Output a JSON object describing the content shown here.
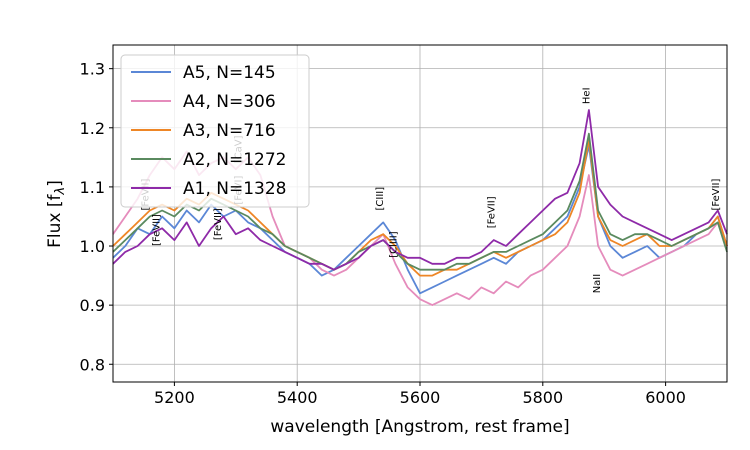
{
  "chart_data": {
    "type": "line",
    "xlabel": "wavelength [Angstrom, rest frame]",
    "ylabel": "Flux [f",
    "ylabel_sub": "λ",
    "ylabel_end": "]",
    "xlim": [
      5100,
      6100
    ],
    "ylim": [
      0.77,
      1.34
    ],
    "xticks": [
      5200,
      5400,
      5600,
      5800,
      6000
    ],
    "yticks": [
      0.8,
      0.9,
      1.0,
      1.1,
      1.2,
      1.3
    ],
    "xtick_labels": [
      "5200",
      "5400",
      "5600",
      "5800",
      "6000"
    ],
    "ytick_labels": [
      "0.8",
      "0.9",
      "1.0",
      "1.1",
      "1.2",
      "1.3"
    ],
    "grid": true,
    "legend_position": "top-left",
    "series": [
      {
        "name": "A5, N=145",
        "color": "#5b87d6",
        "x": [
          5100,
          5120,
          5140,
          5160,
          5180,
          5200,
          5220,
          5240,
          5260,
          5280,
          5300,
          5320,
          5340,
          5360,
          5380,
          5400,
          5420,
          5440,
          5460,
          5480,
          5500,
          5520,
          5540,
          5560,
          5580,
          5600,
          5620,
          5640,
          5660,
          5680,
          5700,
          5720,
          5740,
          5760,
          5780,
          5800,
          5820,
          5840,
          5860,
          5875,
          5890,
          5910,
          5930,
          5950,
          5970,
          5990,
          6010,
          6030,
          6050,
          6070,
          6085,
          6100
        ],
        "y": [
          0.98,
          1.0,
          1.03,
          1.02,
          1.05,
          1.03,
          1.06,
          1.04,
          1.07,
          1.05,
          1.06,
          1.04,
          1.03,
          1.01,
          0.99,
          0.98,
          0.97,
          0.95,
          0.96,
          0.98,
          1.0,
          1.02,
          1.04,
          1.01,
          0.96,
          0.92,
          0.93,
          0.94,
          0.95,
          0.96,
          0.97,
          0.98,
          0.97,
          0.99,
          1.0,
          1.01,
          1.03,
          1.05,
          1.1,
          1.17,
          1.05,
          1.0,
          0.98,
          0.99,
          1.0,
          0.98,
          0.99,
          1.0,
          1.02,
          1.03,
          1.05,
          1.0
        ]
      },
      {
        "name": "A4, N=306",
        "color": "#e58cbc",
        "x": [
          5100,
          5120,
          5140,
          5160,
          5180,
          5200,
          5220,
          5240,
          5260,
          5280,
          5300,
          5320,
          5340,
          5360,
          5380,
          5400,
          5420,
          5440,
          5460,
          5480,
          5500,
          5520,
          5540,
          5560,
          5580,
          5600,
          5620,
          5640,
          5660,
          5680,
          5700,
          5720,
          5740,
          5760,
          5780,
          5800,
          5820,
          5840,
          5860,
          5875,
          5890,
          5910,
          5930,
          5950,
          5970,
          5990,
          6010,
          6030,
          6050,
          6070,
          6085,
          6100
        ],
        "y": [
          1.02,
          1.05,
          1.08,
          1.12,
          1.15,
          1.13,
          1.16,
          1.12,
          1.14,
          1.15,
          1.13,
          1.15,
          1.12,
          1.05,
          1.0,
          0.99,
          0.98,
          0.96,
          0.95,
          0.96,
          0.98,
          1.0,
          1.02,
          0.97,
          0.93,
          0.91,
          0.9,
          0.91,
          0.92,
          0.91,
          0.93,
          0.92,
          0.94,
          0.93,
          0.95,
          0.96,
          0.98,
          1.0,
          1.05,
          1.12,
          1.0,
          0.96,
          0.95,
          0.96,
          0.97,
          0.98,
          0.99,
          1.0,
          1.01,
          1.02,
          1.04,
          1.0
        ]
      },
      {
        "name": "A3, N=716",
        "color": "#ee8626",
        "x": [
          5100,
          5120,
          5140,
          5160,
          5180,
          5200,
          5220,
          5240,
          5260,
          5280,
          5300,
          5320,
          5340,
          5360,
          5380,
          5400,
          5420,
          5440,
          5460,
          5480,
          5500,
          5520,
          5540,
          5560,
          5580,
          5600,
          5620,
          5640,
          5660,
          5680,
          5700,
          5720,
          5740,
          5760,
          5780,
          5800,
          5820,
          5840,
          5860,
          5875,
          5890,
          5910,
          5930,
          5950,
          5970,
          5990,
          6010,
          6030,
          6050,
          6070,
          6085,
          6100
        ],
        "y": [
          1.0,
          1.02,
          1.04,
          1.06,
          1.07,
          1.06,
          1.08,
          1.07,
          1.09,
          1.08,
          1.07,
          1.06,
          1.04,
          1.02,
          1.0,
          0.99,
          0.98,
          0.97,
          0.96,
          0.97,
          0.99,
          1.01,
          1.02,
          1.0,
          0.97,
          0.95,
          0.95,
          0.96,
          0.96,
          0.97,
          0.98,
          0.99,
          0.98,
          0.99,
          1.0,
          1.01,
          1.02,
          1.04,
          1.09,
          1.18,
          1.05,
          1.01,
          1.0,
          1.01,
          1.02,
          1.0,
          1.0,
          1.01,
          1.02,
          1.03,
          1.05,
          1.0
        ]
      },
      {
        "name": "A2, N=1272",
        "color": "#5a8a5f",
        "x": [
          5100,
          5120,
          5140,
          5160,
          5180,
          5200,
          5220,
          5240,
          5260,
          5280,
          5300,
          5320,
          5340,
          5360,
          5380,
          5400,
          5420,
          5440,
          5460,
          5480,
          5500,
          5520,
          5540,
          5560,
          5580,
          5600,
          5620,
          5640,
          5660,
          5680,
          5700,
          5720,
          5740,
          5760,
          5780,
          5800,
          5820,
          5840,
          5860,
          5875,
          5890,
          5910,
          5930,
          5950,
          5970,
          5990,
          6010,
          6030,
          6050,
          6070,
          6085,
          6100
        ],
        "y": [
          0.99,
          1.01,
          1.03,
          1.05,
          1.06,
          1.05,
          1.07,
          1.06,
          1.08,
          1.07,
          1.06,
          1.05,
          1.03,
          1.02,
          1.0,
          0.99,
          0.98,
          0.97,
          0.96,
          0.97,
          0.99,
          1.0,
          1.01,
          0.99,
          0.97,
          0.96,
          0.96,
          0.96,
          0.97,
          0.97,
          0.98,
          0.99,
          0.99,
          1.0,
          1.01,
          1.02,
          1.04,
          1.06,
          1.11,
          1.19,
          1.06,
          1.02,
          1.01,
          1.02,
          1.02,
          1.01,
          1.0,
          1.01,
          1.02,
          1.03,
          1.04,
          0.99
        ]
      },
      {
        "name": "A1, N=1328",
        "color": "#8e2aa8",
        "x": [
          5100,
          5120,
          5140,
          5160,
          5180,
          5200,
          5220,
          5240,
          5260,
          5280,
          5300,
          5320,
          5340,
          5360,
          5380,
          5400,
          5420,
          5440,
          5460,
          5480,
          5500,
          5520,
          5540,
          5560,
          5580,
          5600,
          5620,
          5640,
          5660,
          5680,
          5700,
          5720,
          5740,
          5760,
          5780,
          5800,
          5820,
          5840,
          5860,
          5875,
          5890,
          5910,
          5930,
          5950,
          5970,
          5990,
          6010,
          6030,
          6050,
          6070,
          6085,
          6100
        ],
        "y": [
          0.97,
          0.99,
          1.0,
          1.02,
          1.03,
          1.01,
          1.04,
          1.0,
          1.03,
          1.05,
          1.02,
          1.03,
          1.01,
          1.0,
          0.99,
          0.98,
          0.97,
          0.97,
          0.96,
          0.97,
          0.98,
          1.0,
          1.01,
          0.99,
          0.98,
          0.98,
          0.97,
          0.97,
          0.98,
          0.98,
          0.99,
          1.01,
          1.0,
          1.02,
          1.04,
          1.06,
          1.08,
          1.09,
          1.14,
          1.23,
          1.1,
          1.07,
          1.05,
          1.04,
          1.03,
          1.02,
          1.01,
          1.02,
          1.03,
          1.04,
          1.06,
          1.02
        ]
      }
    ],
    "annotations": [
      {
        "text": "[FeVII]",
        "x": 5158,
        "y": 1.06
      },
      {
        "text": "[FeVII]",
        "x": 5176,
        "y": 1.0
      },
      {
        "text": "[FeVII]",
        "x": 5276,
        "y": 1.01
      },
      {
        "text": "[FeVI]",
        "x": 5309,
        "y": 1.07
      },
      {
        "text": "[CaV]",
        "x": 5309,
        "y": 1.14
      },
      {
        "text": "[CIII]",
        "x": 5540,
        "y": 1.06
      },
      {
        "text": "[ClIII]",
        "x": 5562,
        "y": 0.98
      },
      {
        "text": "[FeVII]",
        "x": 5721,
        "y": 1.03
      },
      {
        "text": "HeI",
        "x": 5876,
        "y": 1.24
      },
      {
        "text": "NaII",
        "x": 5893,
        "y": 0.92
      },
      {
        "text": "[FeVII]",
        "x": 6087,
        "y": 1.06
      }
    ]
  }
}
